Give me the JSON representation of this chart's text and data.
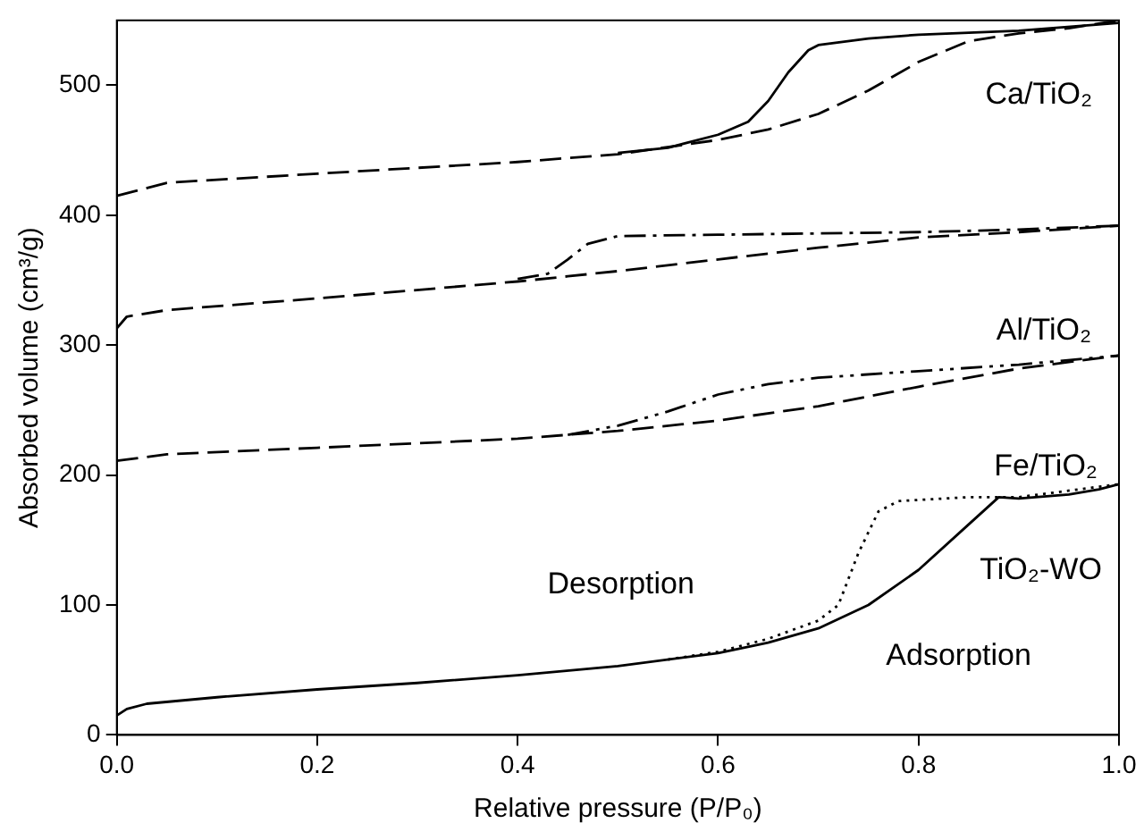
{
  "chart_data": {
    "type": "line",
    "xlabel": "Relative pressure (P/P₀)",
    "ylabel": "Absorbed volume (cm³/g)",
    "xlim": [
      0,
      1
    ],
    "ylim": [
      0,
      550
    ],
    "xticks": [
      {
        "value": 0,
        "label": "0.0"
      },
      {
        "value": 0.2,
        "label": "0.2"
      },
      {
        "value": 0.4,
        "label": "0.4"
      },
      {
        "value": 0.6,
        "label": "0.6"
      },
      {
        "value": 0.8,
        "label": "0.8"
      },
      {
        "value": 1,
        "label": "1.0"
      }
    ],
    "yticks": [
      0,
      100,
      200,
      300,
      400,
      500
    ],
    "grid": false,
    "legend": false,
    "marker": "none",
    "series": [
      {
        "color": "#000000",
        "line_style": "dashed",
        "x": [
          0,
          0.05,
          0.2,
          0.4,
          0.5,
          0.6,
          0.65,
          0.7,
          0.75,
          0.8,
          0.85,
          0.9,
          0.95,
          1
        ],
        "values": [
          415,
          425,
          432,
          441,
          447,
          458,
          466,
          478,
          496,
          518,
          534,
          540,
          544,
          550
        ]
      },
      {
        "color": "#000000",
        "line_style": "solid",
        "x": [
          0.5,
          0.55,
          0.6,
          0.63,
          0.65,
          0.67,
          0.69,
          0.7,
          0.75,
          0.8,
          0.9,
          1
        ],
        "values": [
          448,
          452,
          462,
          472,
          488,
          510,
          527,
          531,
          536,
          539,
          542,
          548
        ]
      },
      {
        "color": "#000000",
        "line_style": "dashed",
        "x": [
          0,
          0.01,
          0.05,
          0.2,
          0.4,
          0.45,
          0.5,
          0.6,
          0.7,
          0.8,
          0.9,
          1
        ],
        "values": [
          313,
          322,
          327,
          336,
          349,
          353,
          357,
          366,
          375,
          383,
          387,
          392
        ]
      },
      {
        "color": "#000000",
        "line_style": "dashdot",
        "x": [
          0.4,
          0.43,
          0.45,
          0.47,
          0.5,
          0.6,
          0.7,
          0.8,
          0.9,
          1
        ],
        "values": [
          351,
          355,
          366,
          378,
          384,
          385,
          386,
          387,
          389,
          392
        ]
      },
      {
        "color": "#000000",
        "line_style": "dashed",
        "x": [
          0,
          0.05,
          0.2,
          0.4,
          0.5,
          0.6,
          0.7,
          0.8,
          0.9,
          1
        ],
        "values": [
          211,
          216,
          221,
          228,
          234,
          242,
          253,
          268,
          282,
          292
        ]
      },
      {
        "color": "#000000",
        "line_style": "dashdotdot",
        "x": [
          0.45,
          0.5,
          0.55,
          0.6,
          0.65,
          0.7,
          0.8,
          0.9,
          1
        ],
        "values": [
          231,
          238,
          249,
          262,
          270,
          275,
          280,
          285,
          292
        ]
      },
      {
        "color": "#000000",
        "line_style": "solid",
        "x": [
          0,
          0.01,
          0.03,
          0.1,
          0.2,
          0.3,
          0.4,
          0.5,
          0.6,
          0.65,
          0.7,
          0.75,
          0.8,
          0.85,
          0.88,
          0.9,
          0.95,
          0.98,
          1
        ],
        "values": [
          15,
          20,
          24,
          29,
          35,
          40,
          46,
          53,
          63,
          71,
          82,
          100,
          127,
          162,
          183,
          182,
          185,
          189,
          193
        ]
      },
      {
        "color": "#000000",
        "line_style": "dotted",
        "x": [
          0.55,
          0.6,
          0.65,
          0.7,
          0.72,
          0.74,
          0.76,
          0.78,
          0.85,
          0.9,
          1
        ],
        "values": [
          58,
          64,
          74,
          88,
          100,
          140,
          172,
          180,
          183,
          183,
          193
        ]
      }
    ],
    "annotations": [
      "Ca/TiO₂",
      "Al/TiO₂",
      "Fe/TiO₂",
      "TiO₂-WO",
      "Desorption",
      "Adsorption"
    ]
  }
}
